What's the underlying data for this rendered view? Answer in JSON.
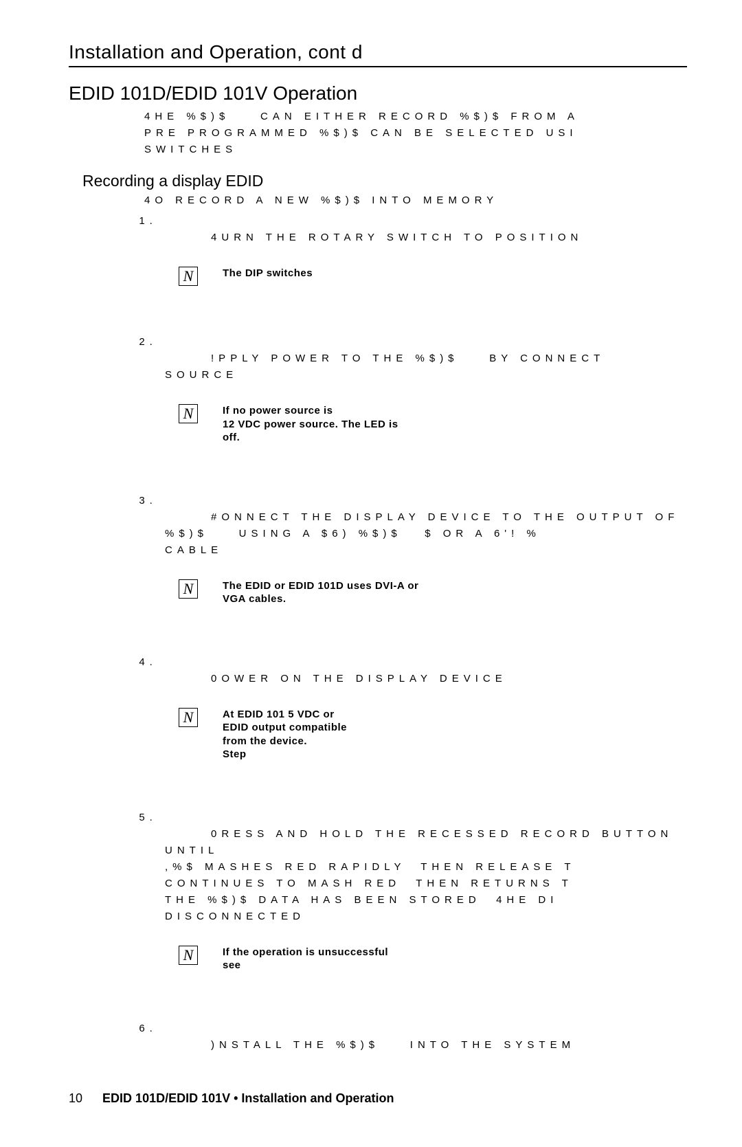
{
  "top_heading": "Installation and Operation, cont d",
  "section_heading": "EDID 101D/EDID 101V Operation",
  "intro_text": "4HE %$)$    CAN EITHER RECORD %$)$ FROM A\nPRE PROGRAMMED %$)$ CAN BE SELECTED USI\nSWITCHES",
  "sub_heading": "Recording a display EDID",
  "lead_text": "4O RECORD A NEW %$)$ INTO MEMORY",
  "steps": [
    {
      "body": "4URN THE ROTARY SWITCH TO POSITION",
      "note": "The DIP switches"
    },
    {
      "body": "!PPLY POWER TO THE %$)$    BY CONNECT\nSOURCE",
      "note": "If no power source is\n12 VDC power source. The LED is\noff."
    },
    {
      "body": "#ONNECT THE DISPLAY DEVICE TO THE OUTPUT OF\n%$)$    USING A $6) %$)$   $ OR A 6'! %\nCABLE",
      "note": "The EDID or EDID 101D uses DVI-A or\nVGA cables."
    },
    {
      "body": "0OWER ON THE DISPLAY DEVICE",
      "note": "At EDID 101 5 VDC or\nEDID output compatible\nfrom the device.\nStep"
    },
    {
      "body": "0RESS AND HOLD THE RECESSED RECORD BUTTON UNTIL\n,%$ MASHES RED RAPIDLY  THEN RELEASE T\nCONTINUES TO MASH RED  THEN RETURNS T\nTHE %$)$ DATA HAS BEEN STORED  4HE DI\nDISCONNECTED",
      "note": "If the operation is unsuccessful\nsee"
    },
    {
      "body": ")NSTALL THE %$)$    INTO THE SYSTEM",
      "note": null
    }
  ],
  "note_glyph": "N",
  "footer": {
    "page_number": "10",
    "text": "EDID 101D/EDID 101V • Installation and Operation"
  }
}
